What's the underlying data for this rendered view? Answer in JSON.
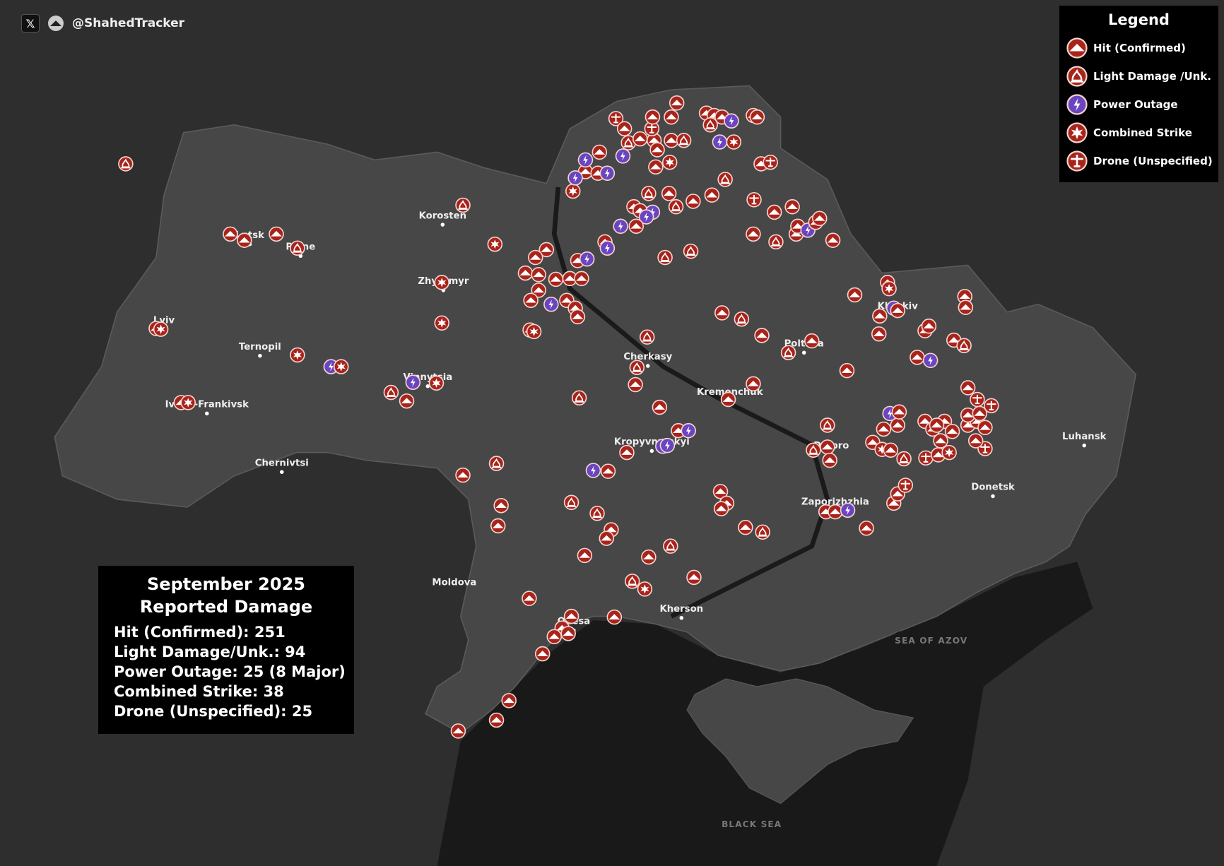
{
  "header": {
    "x_icon": "x-logo-icon",
    "handle": "@ShahedTracker"
  },
  "legend": {
    "title": "Legend",
    "items": [
      {
        "key": "h",
        "label": "Hit (Confirmed)",
        "icon": "hit-icon",
        "color": "#a8241b"
      },
      {
        "key": "f",
        "label": "Light Damage /Unk.",
        "icon": "fire-icon",
        "color": "#a8241b"
      },
      {
        "key": "p",
        "label": "Power Outage",
        "icon": "lightning-icon",
        "color": "#6a45c0"
      },
      {
        "key": "c",
        "label": "Combined Strike",
        "icon": "explosion-icon",
        "color": "#a8241b"
      },
      {
        "key": "d",
        "label": "Drone (Unspecified)",
        "icon": "drone-icon",
        "color": "#a8241b"
      }
    ]
  },
  "summary": {
    "title_line1": "September 2025",
    "title_line2": "Reported Damage",
    "lines": [
      "Hit (Confirmed): 251",
      "Light Damage/Unk.: 94",
      "Power Outage: 25 (8 Major)",
      "Combined Strike: 38",
      "Drone (Unspecified): 25"
    ]
  },
  "cities": [
    "Korosten",
    "Zhytomyr",
    "Lutsk",
    "Rivne",
    "Lviv",
    "Ternopil",
    "Ivano-Frankivsk",
    "Chernivtsi",
    "Vinnytsia",
    "Cherkasy",
    "Kremenchuk",
    "Kropyvnytskyi",
    "Poltava",
    "Kharkiv",
    "Dnipro",
    "Zaporizhzhia",
    "Donetsk",
    "Luhansk",
    "Kherson",
    "Odesa",
    "Moldova"
  ],
  "seas": [
    "SEA OF AZOV",
    "BLACK SEA"
  ],
  "watermark": "@ShahedTracker"
}
